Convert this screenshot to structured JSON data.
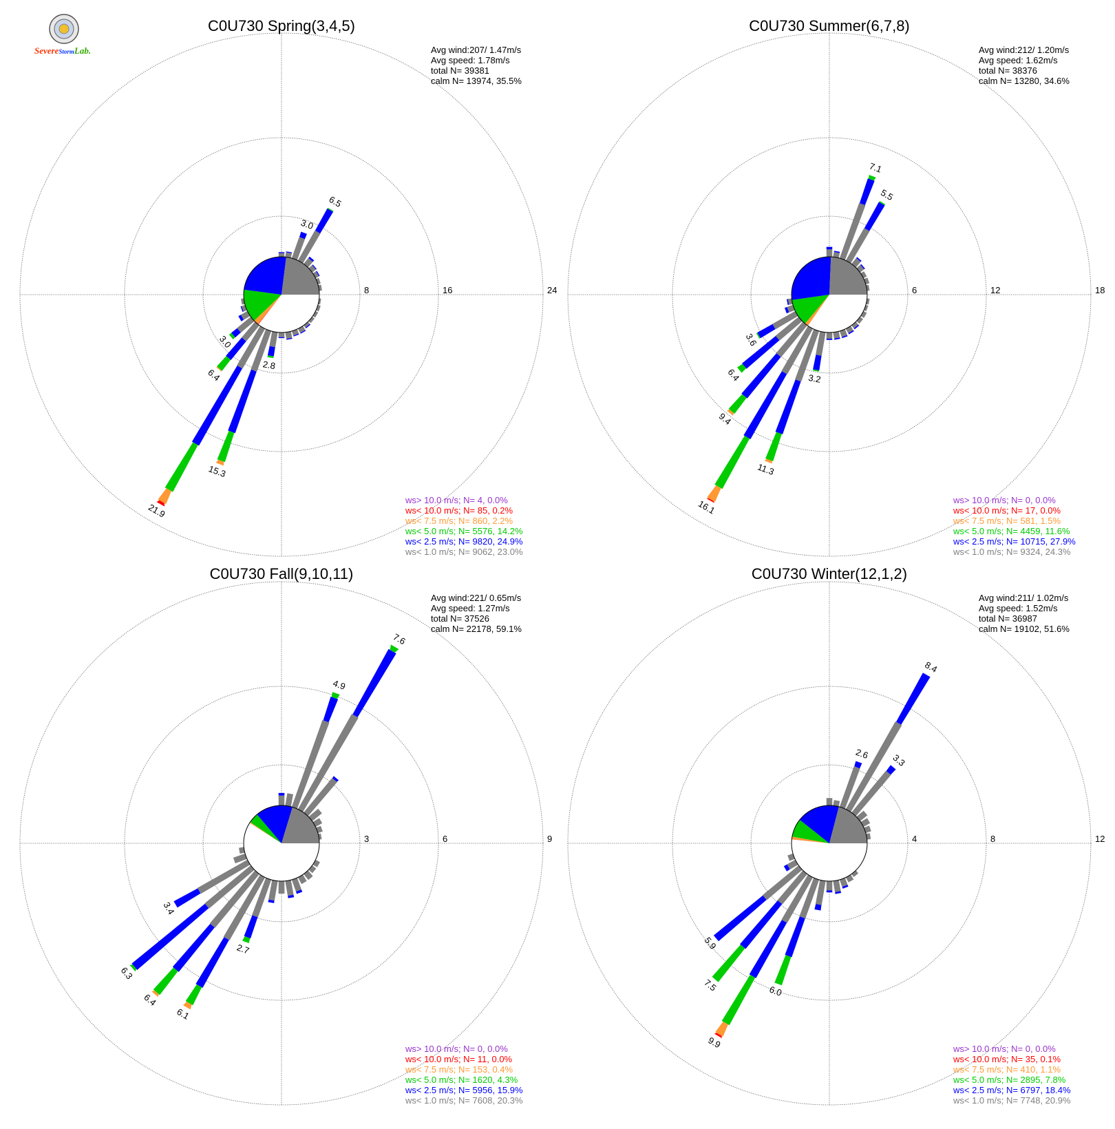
{
  "logo": {
    "line1": "Severe",
    "line2": "Storm",
    "line3": "Lab."
  },
  "colors": {
    "ws_gt_10": "#9933cc",
    "ws_lt_10": "#ff0000",
    "ws_lt_7_5": "#ff9933",
    "ws_lt_5": "#00cc00",
    "ws_lt_2_5": "#0000ff",
    "ws_lt_1": "#808080",
    "calm_fill": "#ffffff"
  },
  "chart_data": [
    {
      "type": "windrose",
      "title": "C0U730 Spring(3,4,5)",
      "ring_labels": [
        "8",
        "16",
        "24"
      ],
      "rmax": 24,
      "stats": [
        "Avg wind:207/ 1.47m/s",
        "Avg speed: 1.78m/s",
        "total N=      39381",
        "calm N=  13974,  35.5%"
      ],
      "legend": [
        {
          "text": "ws> 10.0 m/s; N=     4,  0.0%",
          "color": "#9933cc"
        },
        {
          "text": "ws< 10.0 m/s; N=    85,  0.2%",
          "color": "#ff0000"
        },
        {
          "text": "ws<  7.5 m/s; N=   860,  2.2%",
          "color": "#ff9933"
        },
        {
          "text": "ws<  5.0 m/s; N=  5576, 14.2%",
          "color": "#00cc00"
        },
        {
          "text": "ws<  2.5 m/s; N=  9820, 24.9%",
          "color": "#0000ff"
        },
        {
          "text": "ws<  1.0 m/s; N=  9062, 23.0%",
          "color": "#808080"
        }
      ],
      "calm_pie": [
        35.5,
        0,
        0.2,
        2.2,
        14.2,
        24.9,
        23.0
      ],
      "spokes": [
        {
          "dir": 0,
          "segs": [
            0.4,
            0.1
          ]
        },
        {
          "dir": 10,
          "segs": [
            0.5,
            0.1
          ]
        },
        {
          "dir": 20,
          "segs": [
            2.4,
            0.6
          ],
          "label": "3.0"
        },
        {
          "dir": 30,
          "segs": [
            3.7,
            2.7,
            0.1
          ],
          "label": "6.5"
        },
        {
          "dir": 40,
          "segs": [
            0.8,
            0.2
          ]
        },
        {
          "dir": 50,
          "segs": [
            0.5,
            0.1
          ]
        },
        {
          "dir": 60,
          "segs": [
            0.4,
            0.1
          ]
        },
        {
          "dir": 70,
          "segs": [
            0.3
          ]
        },
        {
          "dir": 80,
          "segs": [
            0.3
          ]
        },
        {
          "dir": 100,
          "segs": [
            0.2
          ]
        },
        {
          "dir": 110,
          "segs": [
            0.3
          ]
        },
        {
          "dir": 120,
          "segs": [
            0.3
          ]
        },
        {
          "dir": 130,
          "segs": [
            0.3
          ]
        },
        {
          "dir": 140,
          "segs": [
            0.3,
            0.1
          ]
        },
        {
          "dir": 150,
          "segs": [
            0.5,
            0.1
          ]
        },
        {
          "dir": 160,
          "segs": [
            0.5,
            0.1
          ]
        },
        {
          "dir": 170,
          "segs": [
            0.7,
            0.1
          ]
        },
        {
          "dir": 180,
          "segs": [
            0.5,
            0.1
          ]
        },
        {
          "dir": 190,
          "segs": [
            1.6,
            1.0,
            0.2
          ],
          "label": "2.8"
        },
        {
          "dir": 200,
          "segs": [
            4.6,
            7.0,
            3.3,
            0.4
          ],
          "label": "15.3"
        },
        {
          "dir": 210,
          "segs": [
            4.9,
            9.5,
            5.7,
            1.5,
            0.3
          ],
          "label": "21.9"
        },
        {
          "dir": 220,
          "segs": [
            2.2,
            2.6,
            1.5,
            0.1
          ],
          "label": "6.4"
        },
        {
          "dir": 230,
          "segs": [
            1.9,
            0.8,
            0.3
          ],
          "label": "3.0"
        },
        {
          "dir": 240,
          "segs": [
            0.8,
            0.3
          ]
        },
        {
          "dir": 250,
          "segs": [
            0.4,
            0.1
          ]
        },
        {
          "dir": 260,
          "segs": [
            0.3
          ]
        }
      ]
    },
    {
      "type": "windrose",
      "title": "C0U730 Summer(6,7,8)",
      "ring_labels": [
        "6",
        "12",
        "18"
      ],
      "rmax": 18,
      "stats": [
        "Avg wind:212/ 1.20m/s",
        "Avg speed: 1.62m/s",
        "total N=      38376",
        "calm N=  13280,  34.6%"
      ],
      "legend": [
        {
          "text": "ws> 10.0 m/s; N=     0,  0.0%",
          "color": "#9933cc"
        },
        {
          "text": "ws< 10.0 m/s; N=    17,  0.0%",
          "color": "#ff0000"
        },
        {
          "text": "ws<  7.5 m/s; N=   581,  1.5%",
          "color": "#ff9933"
        },
        {
          "text": "ws<  5.0 m/s; N=  4459, 11.6%",
          "color": "#00cc00"
        },
        {
          "text": "ws<  2.5 m/s; N= 10715, 27.9%",
          "color": "#0000ff"
        },
        {
          "text": "ws<  1.0 m/s; N=  9324, 24.3%",
          "color": "#808080"
        }
      ],
      "calm_pie": [
        34.6,
        0,
        0.0,
        1.5,
        11.6,
        27.9,
        24.3
      ],
      "spokes": [
        {
          "dir": 0,
          "segs": [
            0.6,
            0.2
          ]
        },
        {
          "dir": 10,
          "segs": [
            0.4,
            0.1
          ]
        },
        {
          "dir": 20,
          "segs": [
            4.7,
            2.1,
            0.3
          ],
          "label": "7.1"
        },
        {
          "dir": 30,
          "segs": [
            3.0,
            2.4,
            0.1
          ],
          "label": "5.5"
        },
        {
          "dir": 40,
          "segs": [
            0.6,
            0.1
          ]
        },
        {
          "dir": 50,
          "segs": [
            0.4,
            0.1
          ]
        },
        {
          "dir": 60,
          "segs": [
            0.3
          ]
        },
        {
          "dir": 70,
          "segs": [
            0.3
          ]
        },
        {
          "dir": 80,
          "segs": [
            0.2
          ]
        },
        {
          "dir": 100,
          "segs": [
            0.2
          ]
        },
        {
          "dir": 110,
          "segs": [
            0.2
          ]
        },
        {
          "dir": 120,
          "segs": [
            0.3
          ]
        },
        {
          "dir": 130,
          "segs": [
            0.3
          ]
        },
        {
          "dir": 140,
          "segs": [
            0.3,
            0.1
          ]
        },
        {
          "dir": 150,
          "segs": [
            0.4,
            0.1
          ]
        },
        {
          "dir": 160,
          "segs": [
            0.5,
            0.1
          ]
        },
        {
          "dir": 170,
          "segs": [
            0.5,
            0.1
          ]
        },
        {
          "dir": 180,
          "segs": [
            0.5,
            0.1
          ]
        },
        {
          "dir": 190,
          "segs": [
            1.9,
            1.2,
            0.1
          ],
          "label": "3.2"
        },
        {
          "dir": 200,
          "segs": [
            4.3,
            4.5,
            2.3,
            0.2
          ],
          "label": "11.3"
        },
        {
          "dir": 210,
          "segs": [
            4.2,
            6.0,
            4.6,
            1.2,
            0.1
          ],
          "label": "16.1"
        },
        {
          "dir": 220,
          "segs": [
            3.3,
            4.3,
            1.6,
            0.2
          ],
          "label": "9.4"
        },
        {
          "dir": 230,
          "segs": [
            2.4,
            3.5,
            0.5
          ],
          "label": "6.4"
        },
        {
          "dir": 240,
          "segs": [
            2.1,
            1.4,
            0.1
          ],
          "label": "3.6"
        },
        {
          "dir": 250,
          "segs": [
            0.5,
            0.2
          ]
        },
        {
          "dir": 260,
          "segs": [
            0.3,
            0.1
          ]
        }
      ]
    },
    {
      "type": "windrose",
      "title": "C0U730 Fall(9,10,11)",
      "ring_labels": [
        "3",
        "6",
        "9"
      ],
      "rmax": 9,
      "stats": [
        "Avg wind:221/ 0.65m/s",
        "Avg speed: 1.27m/s",
        "total N=      37526",
        "calm N=  22178,  59.1%"
      ],
      "legend": [
        {
          "text": "ws> 10.0 m/s; N=     0,  0.0%",
          "color": "#9933cc"
        },
        {
          "text": "ws< 10.0 m/s; N=    11,  0.0%",
          "color": "#ff0000"
        },
        {
          "text": "ws<  7.5 m/s; N=   153,  0.4%",
          "color": "#ff9933"
        },
        {
          "text": "ws<  5.0 m/s; N=  1620,  4.3%",
          "color": "#00cc00"
        },
        {
          "text": "ws<  2.5 m/s; N=  5956, 15.9%",
          "color": "#0000ff"
        },
        {
          "text": "ws<  1.0 m/s; N=  7608, 20.3%",
          "color": "#808080"
        }
      ],
      "calm_pie": [
        59.1,
        0,
        0.0,
        0.4,
        4.3,
        15.9,
        20.3
      ],
      "spokes": [
        {
          "dir": 0,
          "segs": [
            0.4,
            0.1
          ]
        },
        {
          "dir": 10,
          "segs": [
            0.5
          ]
        },
        {
          "dir": 20,
          "segs": [
            3.7,
            1.0,
            0.2
          ],
          "label": "4.9"
        },
        {
          "dir": 30,
          "segs": [
            4.4,
            3.0,
            0.2
          ],
          "label": "7.6"
        },
        {
          "dir": 40,
          "segs": [
            1.8,
            0.1
          ]
        },
        {
          "dir": 50,
          "segs": [
            0.5
          ]
        },
        {
          "dir": 60,
          "segs": [
            0.3
          ]
        },
        {
          "dir": 70,
          "segs": [
            0.2
          ]
        },
        {
          "dir": 80,
          "segs": [
            0.1
          ]
        },
        {
          "dir": 120,
          "segs": [
            0.2
          ]
        },
        {
          "dir": 130,
          "segs": [
            0.2
          ]
        },
        {
          "dir": 140,
          "segs": [
            0.3
          ]
        },
        {
          "dir": 150,
          "segs": [
            0.3
          ]
        },
        {
          "dir": 160,
          "segs": [
            0.5,
            0.1
          ]
        },
        {
          "dir": 170,
          "segs": [
            0.6,
            0.1
          ]
        },
        {
          "dir": 180,
          "segs": [
            0.5
          ]
        },
        {
          "dir": 190,
          "segs": [
            0.8,
            0.1
          ]
        },
        {
          "dir": 200,
          "segs": [
            1.6,
            0.9,
            0.2
          ],
          "label": "2.7"
        },
        {
          "dir": 210,
          "segs": [
            2.9,
            2.2,
            0.8,
            0.2
          ],
          "label": "6.1"
        },
        {
          "dir": 220,
          "segs": [
            2.8,
            2.3,
            1.2,
            0.1
          ],
          "label": "6.4"
        },
        {
          "dir": 230,
          "segs": [
            2.4,
            3.8,
            0.1
          ],
          "label": "6.3"
        },
        {
          "dir": 240,
          "segs": [
            2.3,
            1.1
          ],
          "label": "3.4"
        },
        {
          "dir": 250,
          "segs": [
            0.5
          ]
        },
        {
          "dir": 260,
          "segs": [
            0.2
          ]
        }
      ]
    },
    {
      "type": "windrose",
      "title": "C0U730 Winter(12,1,2)",
      "ring_labels": [
        "4",
        "8",
        "12"
      ],
      "rmax": 12,
      "stats": [
        "Avg wind:211/ 1.02m/s",
        "Avg speed: 1.52m/s",
        "total N=      36987",
        "calm N=  19102,  51.6%"
      ],
      "legend": [
        {
          "text": "ws> 10.0 m/s; N=     0,  0.0%",
          "color": "#9933cc"
        },
        {
          "text": "ws< 10.0 m/s; N=    35,  0.1%",
          "color": "#ff0000"
        },
        {
          "text": "ws<  7.5 m/s; N=   410,  1.1%",
          "color": "#ff9933"
        },
        {
          "text": "ws<  5.0 m/s; N=  2895,  7.8%",
          "color": "#00cc00"
        },
        {
          "text": "ws<  2.5 m/s; N=  6797, 18.4%",
          "color": "#0000ff"
        },
        {
          "text": "ws<  1.0 m/s; N=  7748, 20.9%",
          "color": "#808080"
        }
      ],
      "calm_pie": [
        51.6,
        0,
        0.1,
        1.1,
        7.8,
        18.4,
        20.9
      ],
      "spokes": [
        {
          "dir": 0,
          "segs": [
            0.4
          ]
        },
        {
          "dir": 10,
          "segs": [
            0.3
          ]
        },
        {
          "dir": 20,
          "segs": [
            2.3,
            0.3
          ],
          "label": "2.6"
        },
        {
          "dir": 30,
          "segs": [
            5.4,
            3.0
          ],
          "label": "8.4"
        },
        {
          "dir": 40,
          "segs": [
            2.9,
            0.4
          ],
          "label": "3.3"
        },
        {
          "dir": 50,
          "segs": [
            0.5
          ]
        },
        {
          "dir": 60,
          "segs": [
            0.4
          ]
        },
        {
          "dir": 70,
          "segs": [
            0.3
          ]
        },
        {
          "dir": 80,
          "segs": [
            0.2
          ]
        },
        {
          "dir": 140,
          "segs": [
            0.2
          ]
        },
        {
          "dir": 150,
          "segs": [
            0.3
          ]
        },
        {
          "dir": 160,
          "segs": [
            0.4,
            0.1
          ]
        },
        {
          "dir": 170,
          "segs": [
            0.6,
            0.1
          ]
        },
        {
          "dir": 180,
          "segs": [
            0.5,
            0.1
          ]
        },
        {
          "dir": 190,
          "segs": [
            1.3,
            0.3
          ]
        },
        {
          "dir": 200,
          "segs": [
            2.2,
            2.2,
            1.6
          ],
          "label": "6.0"
        },
        {
          "dir": 210,
          "segs": [
            2.8,
            3.4,
            2.9,
            0.7,
            0.1
          ],
          "label": "9.9"
        },
        {
          "dir": 220,
          "segs": [
            2.1,
            3.1,
            2.3
          ],
          "label": "7.5"
        },
        {
          "dir": 230,
          "segs": [
            2.5,
            3.4
          ],
          "label": "5.9"
        },
        {
          "dir": 240,
          "segs": [
            0.5,
            0.2
          ]
        },
        {
          "dir": 250,
          "segs": [
            0.3
          ]
        }
      ]
    }
  ]
}
